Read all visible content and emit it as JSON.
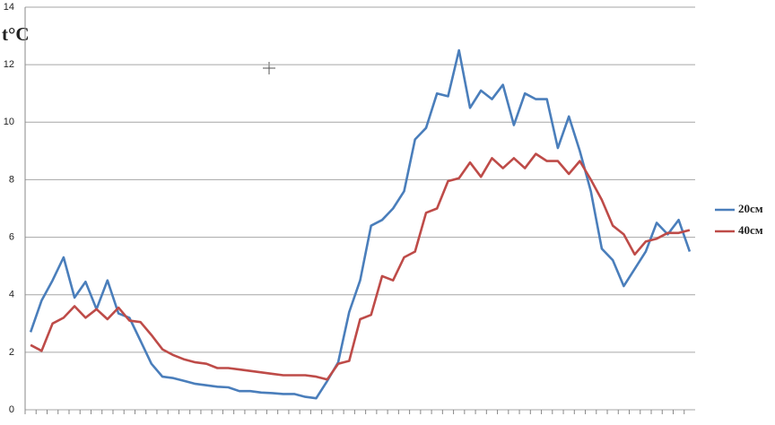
{
  "chart_data": {
    "type": "line",
    "y_label": "t°C",
    "categories": [
      null,
      null,
      null,
      null,
      null,
      null,
      null,
      null,
      null,
      null,
      null,
      null,
      null,
      null,
      null,
      null,
      null,
      null,
      null,
      null,
      null,
      null,
      null,
      null,
      null,
      null,
      null,
      null,
      null,
      null,
      null,
      null,
      null,
      null,
      null,
      null,
      null,
      null,
      null,
      null,
      null,
      null,
      null,
      null,
      null,
      null,
      null,
      null,
      null,
      null,
      null,
      null,
      null,
      null,
      null,
      null,
      null,
      null,
      null,
      null,
      null
    ],
    "series": [
      {
        "name": "20см",
        "color": "#4a7ebb",
        "values": [
          2.7,
          3.8,
          4.5,
          5.3,
          3.9,
          4.45,
          3.5,
          4.5,
          3.35,
          3.2,
          2.4,
          1.6,
          1.15,
          1.1,
          1.0,
          0.9,
          0.85,
          0.8,
          0.78,
          0.65,
          0.65,
          0.6,
          0.58,
          0.55,
          0.55,
          0.45,
          0.4,
          1.0,
          1.65,
          3.4,
          4.5,
          6.4,
          6.6,
          7.0,
          7.6,
          9.4,
          9.8,
          11.0,
          10.9,
          12.5,
          10.5,
          11.1,
          10.8,
          11.3,
          9.9,
          11.0,
          10.8,
          10.8,
          9.1,
          10.2,
          9.0,
          7.6,
          5.6,
          5.2,
          4.3,
          4.9,
          5.5,
          6.5,
          6.1,
          6.6,
          5.5
        ]
      },
      {
        "name": "40см",
        "color": "#be4b48",
        "values": [
          2.25,
          2.05,
          3.0,
          3.2,
          3.6,
          3.2,
          3.5,
          3.15,
          3.55,
          3.1,
          3.05,
          2.6,
          2.1,
          1.9,
          1.75,
          1.65,
          1.6,
          1.45,
          1.45,
          1.4,
          1.35,
          1.3,
          1.25,
          1.2,
          1.2,
          1.2,
          1.15,
          1.05,
          1.6,
          1.7,
          3.15,
          3.3,
          4.65,
          4.5,
          5.3,
          5.5,
          6.85,
          7.0,
          7.95,
          8.05,
          8.6,
          8.1,
          8.75,
          8.4,
          8.75,
          8.4,
          8.9,
          8.65,
          8.65,
          8.2,
          8.65,
          8.0,
          7.3,
          6.4,
          6.1,
          5.4,
          5.85,
          5.95,
          6.15,
          6.15,
          6.25
        ]
      }
    ],
    "ylim": [
      0,
      14
    ],
    "yticks": [
      0,
      2,
      4,
      6,
      8,
      10,
      12,
      14
    ],
    "grid": true,
    "legend": "right"
  }
}
